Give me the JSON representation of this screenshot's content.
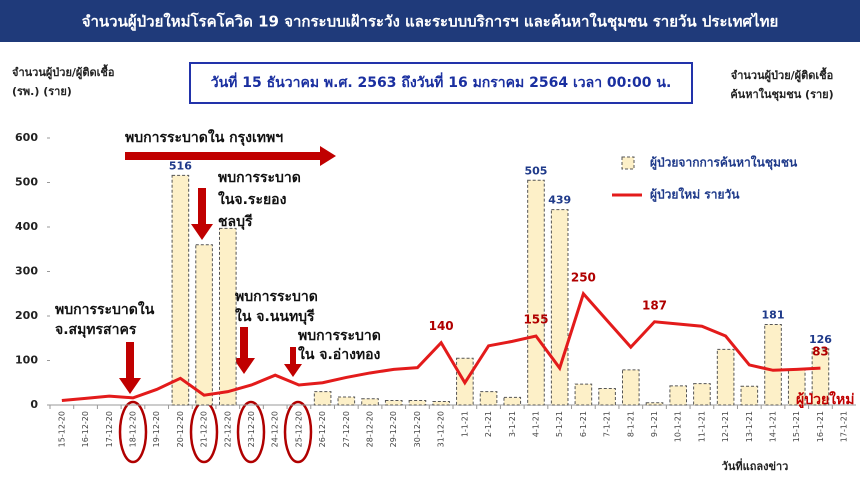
{
  "chart_data": {
    "type": "bar-line",
    "title": "จำนวนผู้ป่วยใหม่โรคโควิด 19 จากระบบเฝ้าระวัง และระบบบริการฯ และค้นหาในชุมชน รายวัน ประเทศไทย",
    "subtitle": "วันที่ 15 ธันวาคม พ.ศ. 2563 ถึงวันที่ 16 มกราคม 2564 เวลา 00:00 น.",
    "y_label": [
      "จำนวนผู้ป่วย/ผู้ติดเชื้อ",
      "(รพ.) (ราย)"
    ],
    "y2_label": [
      "จำนวนผู้ป่วย/ผู้ติดเชื้อ",
      "ค้นหาในชุมชน (ราย)"
    ],
    "x_label": "วันที่แถลงข่าว",
    "categories": [
      "15-12-20",
      "16-12-20",
      "17-12-20",
      "18-12-20",
      "19-12-20",
      "20-12-20",
      "21-12-20",
      "22-12-20",
      "23-12-20",
      "24-12-20",
      "25-12-20",
      "26-12-20",
      "27-12-20",
      "28-12-20",
      "29-12-20",
      "30-12-20",
      "31-12-20",
      "1-1-21",
      "2-1-21",
      "3-1-21",
      "4-1-21",
      "5-1-21",
      "6-1-21",
      "7-1-21",
      "8-1-21",
      "9-1-21",
      "10-1-21",
      "11-1-21",
      "12-1-21",
      "13-1-21",
      "14-1-21",
      "15-1-21",
      "16-1-21",
      "17-1-21"
    ],
    "series": [
      {
        "name": "ผู้ป่วยจากการค้นหาในชุมชน",
        "kind": "bar",
        "color": "#fdf0c8",
        "values": [
          null,
          null,
          null,
          null,
          null,
          516,
          360,
          397,
          null,
          null,
          null,
          30,
          18,
          14,
          10,
          10,
          8,
          105,
          30,
          17,
          505,
          439,
          47,
          37,
          79,
          5,
          43,
          48,
          125,
          42,
          181,
          80,
          126,
          null
        ],
        "value_labels": [
          null,
          null,
          null,
          null,
          null,
          "516",
          null,
          null,
          null,
          null,
          null,
          null,
          null,
          null,
          null,
          null,
          null,
          null,
          null,
          null,
          "505",
          "439",
          null,
          null,
          null,
          null,
          null,
          null,
          null,
          null,
          "181",
          null,
          "126",
          null
        ]
      },
      {
        "name": "ผู้ป่วยใหม่ รายวัน",
        "kind": "line",
        "color": "#e31b1b",
        "values": [
          10,
          15,
          20,
          16,
          35,
          60,
          22,
          30,
          45,
          67,
          45,
          50,
          62,
          72,
          80,
          84,
          140,
          50,
          133,
          143,
          155,
          83,
          250,
          190,
          130,
          187,
          182,
          177,
          155,
          90,
          78,
          80,
          83,
          null
        ],
        "value_labels": [
          null,
          null,
          null,
          null,
          null,
          null,
          null,
          null,
          null,
          null,
          null,
          null,
          null,
          null,
          null,
          null,
          "140",
          null,
          null,
          null,
          "155",
          null,
          "250",
          null,
          null,
          "187",
          null,
          null,
          null,
          null,
          null,
          null,
          "83",
          null
        ]
      }
    ],
    "ylim": [
      0,
      600
    ],
    "yticks": [
      0,
      100,
      200,
      300,
      400,
      500,
      600
    ],
    "annotations": [
      [
        "พบการระบาดใน กรุงเทพฯ"
      ],
      [
        "พบการระบาด",
        "ในจ.ระยอง",
        "ชลบุรี"
      ],
      [
        "พบการระบาดใน",
        "จ.สมุทรสาคร"
      ],
      [
        "พบการระบาด",
        "ใน จ.นนทบุรี"
      ],
      [
        "พบการระบาด",
        "ใน จ.อ่างทอง"
      ]
    ],
    "series_end_label": "ผู้ป่วยใหม่"
  }
}
